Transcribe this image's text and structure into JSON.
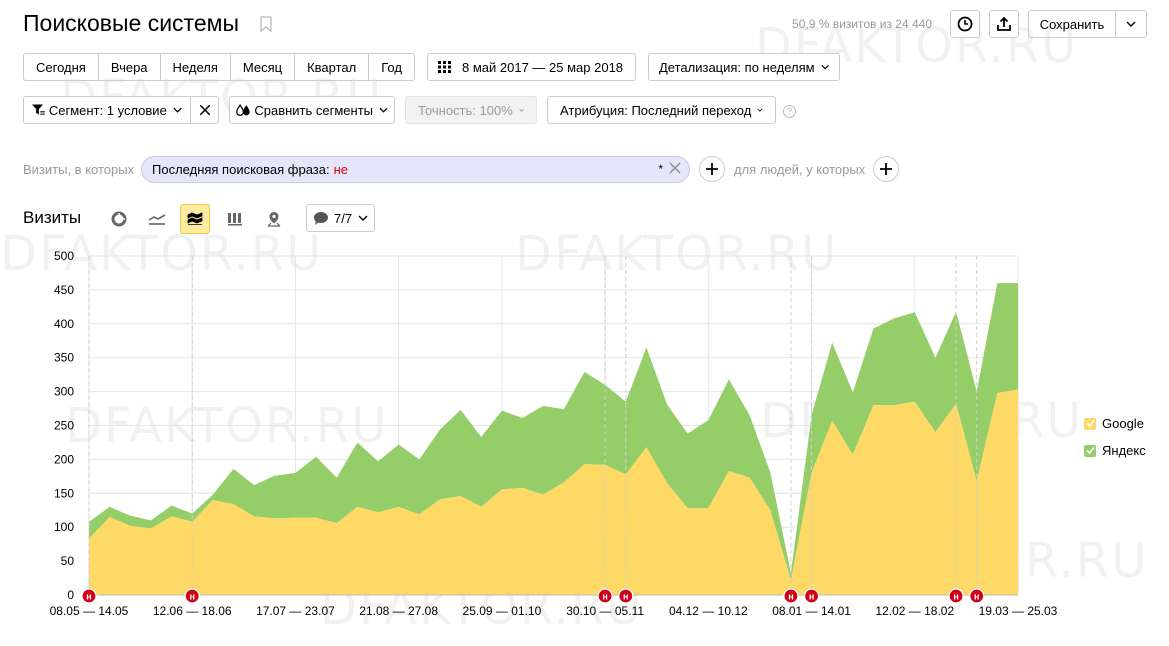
{
  "header": {
    "title": "Поисковые системы",
    "summary": "50,9 % визитов из 24 440",
    "save_label": "Сохранить"
  },
  "periods": [
    "Сегодня",
    "Вчера",
    "Неделя",
    "Месяц",
    "Квартал",
    "Год"
  ],
  "date_range": "8 май 2017 — 25 мар 2018",
  "detail": "Детализация: по неделям",
  "segment": "Сегмент: 1 условие",
  "compare": "Сравнить сегменты",
  "accuracy": "Точность: 100%",
  "attribution": "Атрибуция: Последний переход",
  "filter": {
    "visits_label": "Визиты, в которых",
    "condition": "Последняя поисковая фраза:",
    "operator": "не",
    "value": "*",
    "people_label": "для людей, у которых"
  },
  "chart_header": {
    "title": "Визиты",
    "annotations": "7/7"
  },
  "watermark": "DFAKTOR.RU",
  "chart_data": {
    "type": "area",
    "stacked": true,
    "ylim": [
      0,
      500
    ],
    "yticks": [
      0,
      50,
      100,
      150,
      200,
      250,
      300,
      350,
      400,
      450,
      500
    ],
    "x_tick_labels": [
      "08.05 — 14.05",
      "12.06 — 18.06",
      "17.07 — 23.07",
      "21.08 — 27.08",
      "25.09 — 01.10",
      "30.10 — 05.11",
      "04.12 — 10.12",
      "08.01 — 14.01",
      "12.02 — 18.02",
      "19.03 — 25.03"
    ],
    "grid": true,
    "legend_position": "right",
    "series": [
      {
        "name": "Google",
        "color": "#ffd966",
        "values": [
          83,
          115,
          102,
          98,
          116,
          108,
          140,
          134,
          116,
          113,
          114,
          114,
          106,
          130,
          122,
          130,
          119,
          141,
          146,
          130,
          156,
          158,
          148,
          166,
          193,
          192,
          178,
          218,
          165,
          128,
          128,
          183,
          173,
          125,
          22,
          180,
          257,
          207,
          280,
          280,
          285,
          240,
          282,
          168,
          298,
          303
        ]
      },
      {
        "name": "Яндекс",
        "color": "#95cd69",
        "values": [
          25,
          15,
          15,
          12,
          16,
          12,
          8,
          52,
          46,
          63,
          66,
          90,
          67,
          95,
          75,
          92,
          81,
          103,
          127,
          103,
          116,
          103,
          131,
          108,
          136,
          118,
          107,
          147,
          116,
          110,
          130,
          135,
          92,
          56,
          10,
          85,
          115,
          92,
          113,
          128,
          132,
          110,
          136,
          132,
          162,
          157
        ]
      }
    ],
    "markers": [
      {
        "week": 0,
        "label": "н"
      },
      {
        "week": 5,
        "label": "н"
      },
      {
        "week": 25,
        "label": "н"
      },
      {
        "week": 26,
        "label": "н"
      },
      {
        "week": 34,
        "label": "н"
      },
      {
        "week": 35,
        "label": "н"
      },
      {
        "week": 42,
        "label": "н"
      },
      {
        "week": 43,
        "label": "н"
      }
    ]
  }
}
